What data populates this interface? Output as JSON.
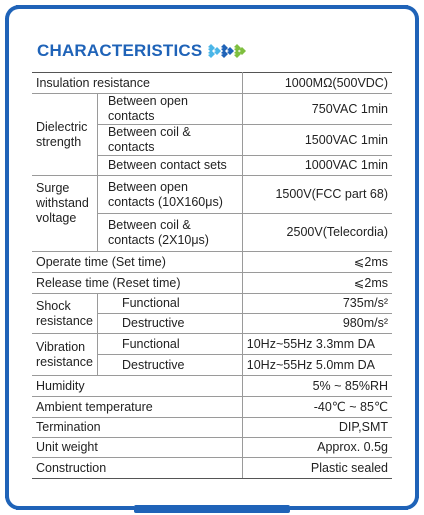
{
  "title": "CHARACTERISTICS",
  "rows": {
    "insulation": {
      "label": "Insulation resistance",
      "value": "1000MΩ(500VDC)"
    },
    "dielectric": {
      "label": "Dielectric strength",
      "items": [
        {
          "sub": "Between open contacts",
          "value": "750VAC 1min"
        },
        {
          "sub": "Between coil & contacts",
          "value": "1500VAC 1min"
        },
        {
          "sub": "Between contact sets",
          "value": "1000VAC 1min"
        }
      ]
    },
    "surge": {
      "label": "Surge withstand voltage",
      "items": [
        {
          "sub": "Between open contacts (10X160μs)",
          "value": "1500V(FCC part 68)"
        },
        {
          "sub": "Between coil & contacts (2X10μs)",
          "value": "2500V(Telecordia)"
        }
      ]
    },
    "operate": {
      "label": "Operate time (Set time)",
      "value": "⩽2ms"
    },
    "release": {
      "label": "Release time (Reset time)",
      "value": "⩽2ms"
    },
    "shock": {
      "label": "Shock resistance",
      "items": [
        {
          "sub": "Functional",
          "value": "735m/s²"
        },
        {
          "sub": "Destructive",
          "value": "980m/s²"
        }
      ]
    },
    "vibration": {
      "label": "Vibration resistance",
      "items": [
        {
          "sub": "Functional",
          "value": "10Hz~55Hz  3.3mm DA"
        },
        {
          "sub": "Destructive",
          "value": "10Hz~55Hz  5.0mm DA"
        }
      ]
    },
    "humidity": {
      "label": "Humidity",
      "value": "5% ~ 85%RH"
    },
    "ambient": {
      "label": "Ambient temperature",
      "value": "-40℃  ~ 85℃"
    },
    "termination": {
      "label": "Termination",
      "value": "DIP,SMT"
    },
    "weight": {
      "label": "Unit weight",
      "value": "Approx. 0.5g"
    },
    "construction": {
      "label": "Construction",
      "value": "Plastic sealed"
    }
  },
  "colors": {
    "accent": "#1f63b8",
    "arrow_light": "#4bb6e8",
    "arrow_green": "#7fbf3f"
  }
}
